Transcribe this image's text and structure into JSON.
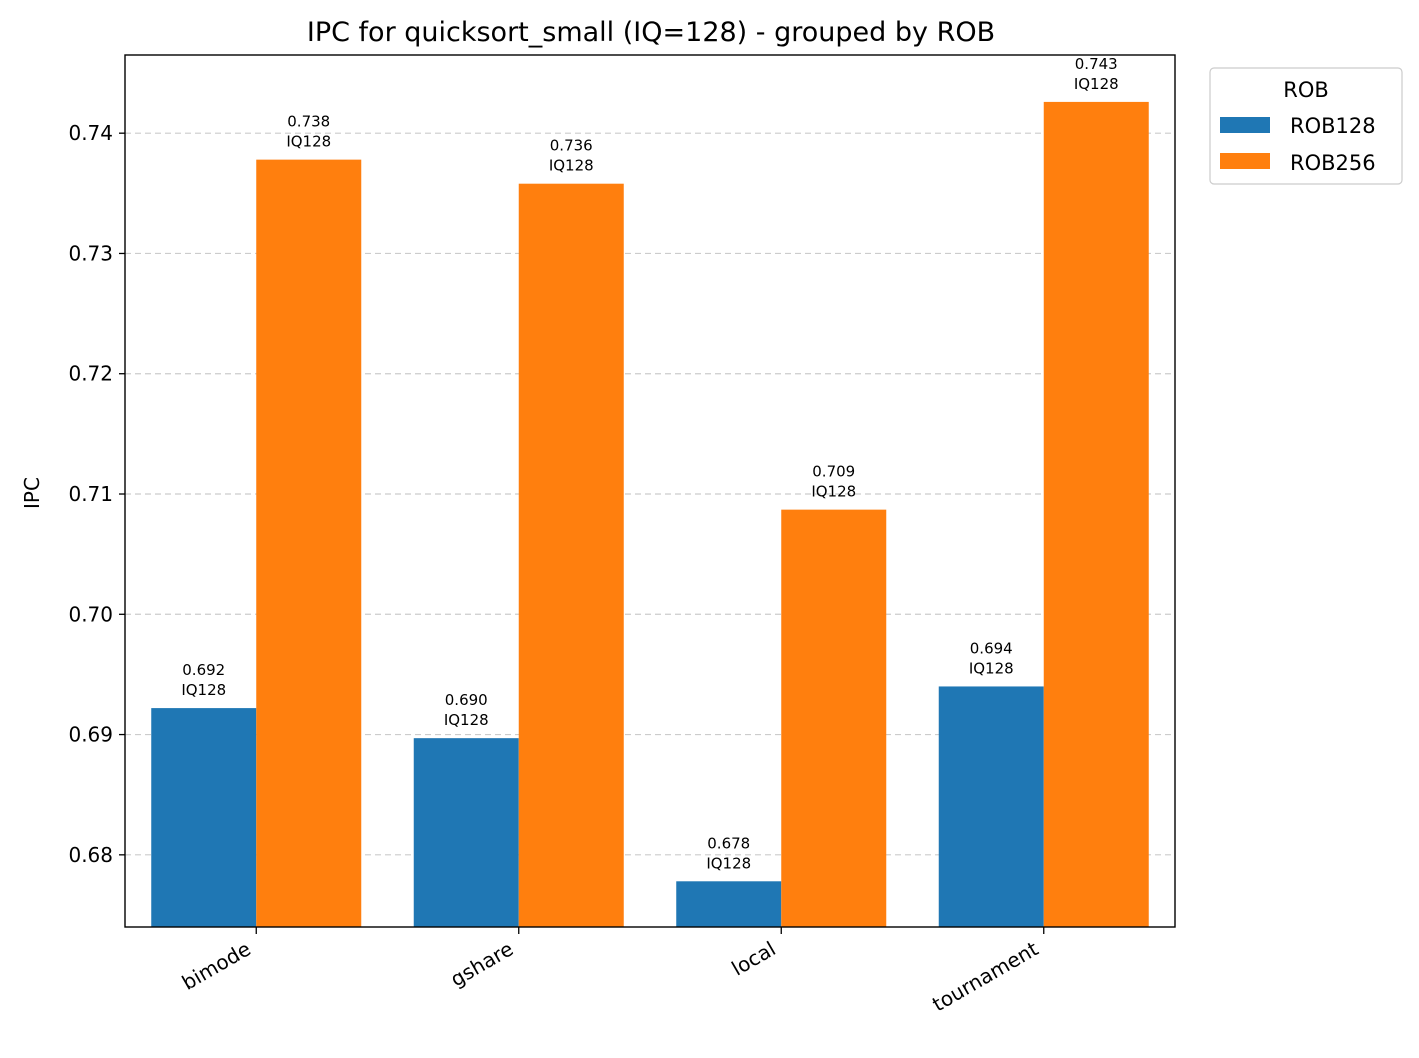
{
  "chart_data": {
    "type": "bar",
    "title": "IPC for quicksort_small (IQ=128) - grouped by ROB",
    "xlabel": "",
    "ylabel": "IPC",
    "ylim": [
      0.674,
      0.7465
    ],
    "yticks": [
      0.68,
      0.69,
      0.7,
      0.71,
      0.72,
      0.73,
      0.74
    ],
    "ytick_labels": [
      "0.68",
      "0.69",
      "0.70",
      "0.71",
      "0.72",
      "0.73",
      "0.74"
    ],
    "grid": "y-dashed",
    "categories": [
      "bimode",
      "gshare",
      "local",
      "tournament"
    ],
    "series": [
      {
        "name": "ROB128",
        "color": "#1f77b4",
        "values": [
          0.6922,
          0.6897,
          0.6778,
          0.694
        ],
        "labels": [
          [
            "0.692",
            "IQ128"
          ],
          [
            "0.690",
            "IQ128"
          ],
          [
            "0.678",
            "IQ128"
          ],
          [
            "0.694",
            "IQ128"
          ]
        ]
      },
      {
        "name": "ROB256",
        "color": "#ff7f0e",
        "values": [
          0.7378,
          0.7358,
          0.7087,
          0.7426
        ],
        "labels": [
          [
            "0.738",
            "IQ128"
          ],
          [
            "0.736",
            "IQ128"
          ],
          [
            "0.709",
            "IQ128"
          ],
          [
            "0.743",
            "IQ128"
          ]
        ]
      }
    ],
    "legend": {
      "title": "ROB",
      "placement": "outside-top-right"
    }
  }
}
